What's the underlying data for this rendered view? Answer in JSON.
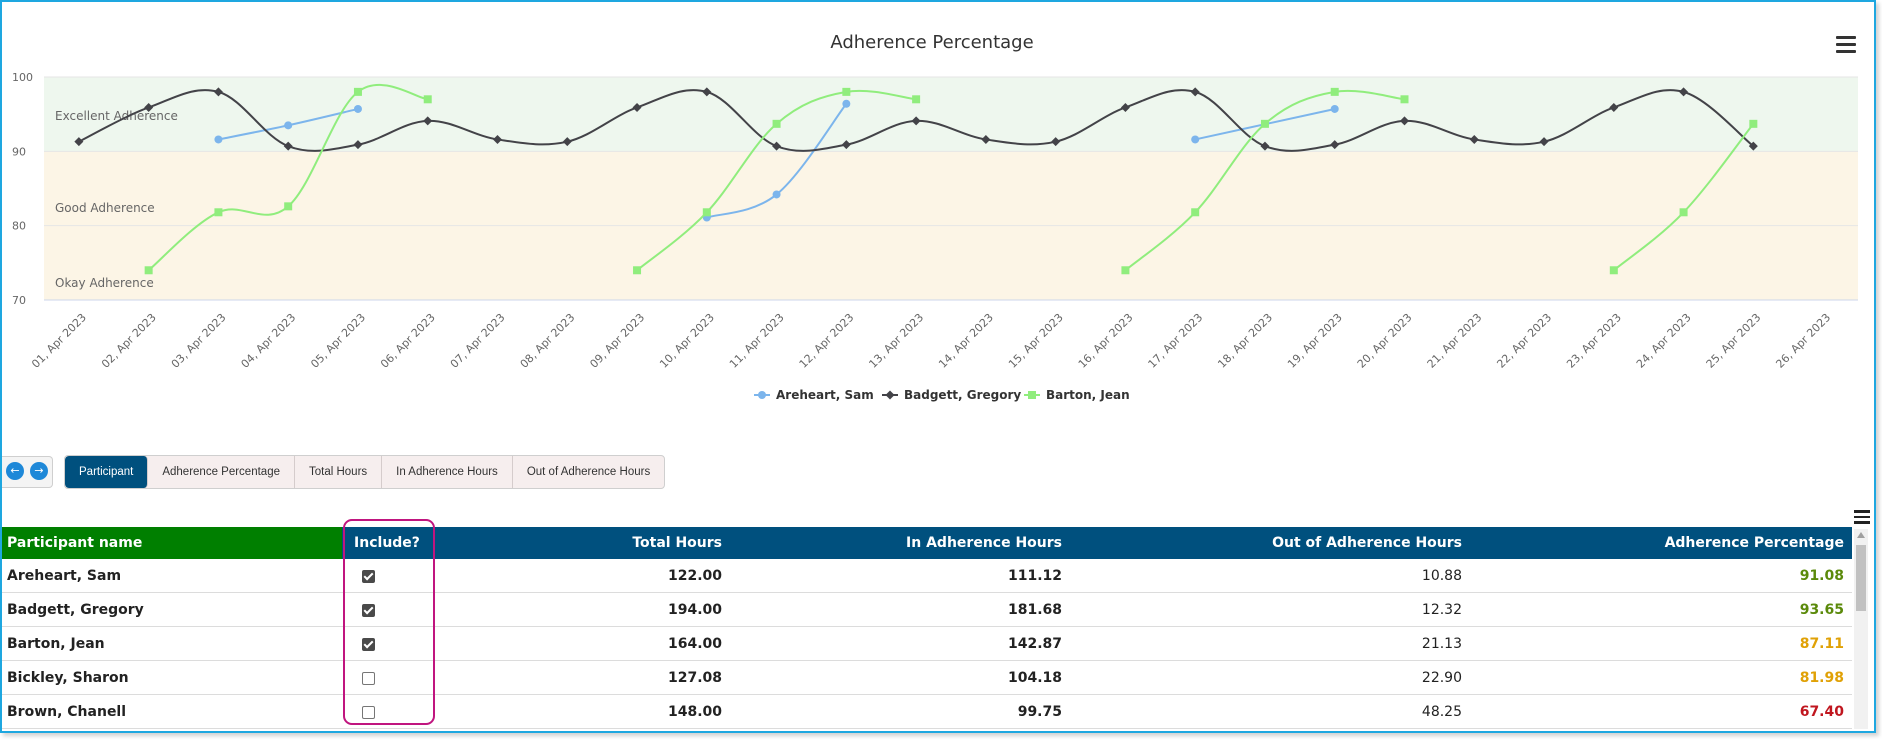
{
  "chart_data": {
    "type": "line",
    "title": "Adherence Percentage",
    "x": [
      "01, Apr 2023",
      "02, Apr 2023",
      "03, Apr 2023",
      "04, Apr 2023",
      "05, Apr 2023",
      "06, Apr 2023",
      "07, Apr 2023",
      "08, Apr 2023",
      "09, Apr 2023",
      "10, Apr 2023",
      "11, Apr 2023",
      "12, Apr 2023",
      "13, Apr 2023",
      "14, Apr 2023",
      "15, Apr 2023",
      "16, Apr 2023",
      "17, Apr 2023",
      "18, Apr 2023",
      "19, Apr 2023",
      "20, Apr 2023",
      "21, Apr 2023",
      "22, Apr 2023",
      "23, Apr 2023",
      "24, Apr 2023",
      "25, Apr 2023",
      "26, Apr 2023"
    ],
    "ylim": [
      70,
      100
    ],
    "yticks": [
      70,
      80,
      90,
      100
    ],
    "bands": [
      {
        "label": "Excellent Adherence",
        "from": 90,
        "to": 100,
        "color": "#eef7ee"
      },
      {
        "label": "Good Adherence",
        "from": 80,
        "to": 90,
        "color": "#fcf5e6"
      },
      {
        "label": "Okay Adherence",
        "from": 70,
        "to": 80,
        "color": "#fcf5e6"
      }
    ],
    "legend_position": "bottom-center",
    "series": [
      {
        "name": "Areheart, Sam",
        "color": "#7cb5ec",
        "marker": "circle",
        "points": [
          [
            2,
            91.6
          ],
          [
            3,
            93.5
          ],
          [
            4,
            95.7
          ],
          [
            9,
            81.1
          ],
          [
            10,
            84.2
          ],
          [
            11,
            96.4
          ],
          [
            16,
            91.6
          ],
          [
            18,
            95.7
          ]
        ]
      },
      {
        "name": "Badgett, Gregory",
        "color": "#434348",
        "marker": "diamond",
        "points": [
          [
            0,
            91.3
          ],
          [
            1,
            95.9
          ],
          [
            2,
            98.0
          ],
          [
            3,
            90.7
          ],
          [
            4,
            90.9
          ],
          [
            5,
            94.1
          ],
          [
            6,
            91.6
          ],
          [
            7,
            91.3
          ],
          [
            8,
            95.9
          ],
          [
            9,
            98.0
          ],
          [
            10,
            90.7
          ],
          [
            11,
            90.9
          ],
          [
            12,
            94.1
          ],
          [
            13,
            91.6
          ],
          [
            14,
            91.3
          ],
          [
            15,
            95.9
          ],
          [
            16,
            98.0
          ],
          [
            17,
            90.7
          ],
          [
            18,
            90.9
          ],
          [
            19,
            94.1
          ],
          [
            20,
            91.6
          ],
          [
            21,
            91.3
          ],
          [
            22,
            95.9
          ],
          [
            23,
            98.0
          ],
          [
            24,
            90.7
          ]
        ]
      },
      {
        "name": "Barton, Jean",
        "color": "#90ed7d",
        "marker": "square",
        "points": [
          [
            1,
            74.0
          ],
          [
            2,
            81.8
          ],
          [
            3,
            82.6
          ],
          [
            4,
            98.0
          ],
          [
            5,
            97.0
          ],
          [
            8,
            74.0
          ],
          [
            9,
            81.8
          ],
          [
            10,
            93.7
          ],
          [
            11,
            98.0
          ],
          [
            12,
            97.0
          ],
          [
            15,
            74.0
          ],
          [
            16,
            81.8
          ],
          [
            17,
            93.7
          ],
          [
            18,
            98.0
          ],
          [
            19,
            97.0
          ],
          [
            22,
            74.0
          ],
          [
            23,
            81.8
          ],
          [
            24,
            93.7
          ]
        ]
      }
    ]
  },
  "nav": {
    "prev_icon": "arrow-left-icon",
    "next_icon": "arrow-right-icon"
  },
  "tabs": [
    {
      "label": "Participant",
      "active": true
    },
    {
      "label": "Adherence Percentage",
      "active": false
    },
    {
      "label": "Total Hours",
      "active": false
    },
    {
      "label": "In Adherence Hours",
      "active": false
    },
    {
      "label": "Out of Adherence Hours",
      "active": false
    }
  ],
  "table": {
    "columns": [
      "Participant name",
      "Include?",
      "Total Hours",
      "In Adherence Hours",
      "Out of Adherence Hours",
      "Adherence Percentage"
    ],
    "rows": [
      {
        "name": "Areheart, Sam",
        "include": true,
        "total": "122.00",
        "in": "111.12",
        "out": "10.88",
        "pct": "91.08",
        "pct_color": "#5b8a0b"
      },
      {
        "name": "Badgett, Gregory",
        "include": true,
        "total": "194.00",
        "in": "181.68",
        "out": "12.32",
        "pct": "93.65",
        "pct_color": "#5b8a0b"
      },
      {
        "name": "Barton, Jean",
        "include": true,
        "total": "164.00",
        "in": "142.87",
        "out": "21.13",
        "pct": "87.11",
        "pct_color": "#e0a106"
      },
      {
        "name": "Bickley, Sharon",
        "include": false,
        "total": "127.08",
        "in": "104.18",
        "out": "22.90",
        "pct": "81.98",
        "pct_color": "#e0a106"
      },
      {
        "name": "Brown, Chanell",
        "include": false,
        "total": "148.00",
        "in": "99.75",
        "out": "48.25",
        "pct": "67.40",
        "pct_color": "#c0161f"
      }
    ]
  }
}
